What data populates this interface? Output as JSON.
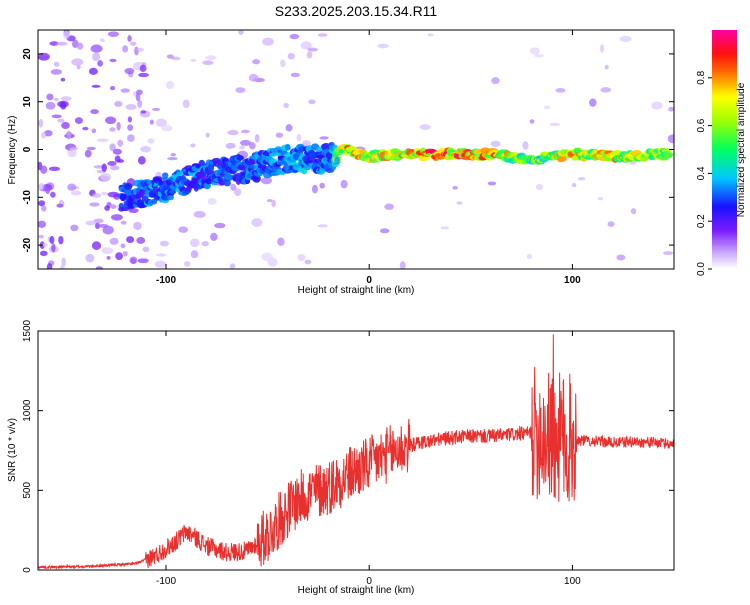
{
  "title": "S233.2025.203.15.34.R11",
  "colors": {
    "snr_line": "#e8302e",
    "axis": "#000000",
    "background": "#ffffff"
  },
  "chart_data": [
    {
      "type": "heatmap",
      "xlabel": "Height of straight line (km)",
      "ylabel": "Frequency (Hz)",
      "xlim": [
        -163,
        150
      ],
      "ylim": [
        -25,
        25
      ],
      "x_ticks": [
        -100,
        0,
        100
      ],
      "y_ticks": [
        -20,
        -10,
        0,
        10,
        20
      ],
      "grid": false,
      "colorbar": {
        "label": "Normalized spectral amplitude",
        "range": [
          0,
          1
        ],
        "ticks": [
          "0.0",
          "0.2",
          "0.4",
          "0.6",
          "0.8"
        ],
        "tick_values": [
          0.0,
          0.2,
          0.4,
          0.6,
          0.8
        ],
        "colormap": "rainbow (white-violet-blue-cyan-green-yellow-red-magenta)"
      },
      "ridge": {
        "description_points": [
          {
            "x": -120,
            "freq": -10,
            "amplitude": 0.35
          },
          {
            "x": -100,
            "freq": -8,
            "amplitude": 0.4
          },
          {
            "x": -80,
            "freq": -5,
            "amplitude": 0.35
          },
          {
            "x": -60,
            "freq": -4,
            "amplitude": 0.35
          },
          {
            "x": -40,
            "freq": -2,
            "amplitude": 0.4
          },
          {
            "x": -20,
            "freq": -2,
            "amplitude": 0.4
          },
          {
            "x": -12,
            "freq": 0,
            "amplitude": 0.85
          },
          {
            "x": 0,
            "freq": -1.5,
            "amplitude": 0.8
          },
          {
            "x": 20,
            "freq": -1,
            "amplitude": 0.85
          },
          {
            "x": 40,
            "freq": -1,
            "amplitude": 0.95
          },
          {
            "x": 60,
            "freq": -1,
            "amplitude": 0.9
          },
          {
            "x": 80,
            "freq": -2,
            "amplitude": 0.6
          },
          {
            "x": 100,
            "freq": -1,
            "amplitude": 0.85
          },
          {
            "x": 120,
            "freq": -1.5,
            "amplitude": 0.85
          },
          {
            "x": 145,
            "freq": -1,
            "amplitude": 0.7
          }
        ]
      }
    },
    {
      "type": "line",
      "xlabel": "Height of straight line (km)",
      "ylabel": "SNR (10 * v/v)",
      "xlim": [
        -163,
        150
      ],
      "ylim": [
        0,
        1500
      ],
      "x_ticks": [
        -100,
        0,
        100
      ],
      "y_ticks": [
        0,
        500,
        1000,
        1500
      ],
      "grid": false,
      "series": [
        {
          "points": [
            [
              -163,
              18
            ],
            [
              -150,
              20
            ],
            [
              -140,
              22
            ],
            [
              -130,
              28
            ],
            [
              -115,
              40
            ],
            [
              -105,
              90
            ],
            [
              -95,
              180
            ],
            [
              -90,
              240
            ],
            [
              -85,
              200
            ],
            [
              -80,
              150
            ],
            [
              -70,
              110
            ],
            [
              -60,
              120
            ],
            [
              -55,
              170
            ],
            [
              -50,
              220
            ],
            [
              -45,
              300
            ],
            [
              -40,
              380
            ],
            [
              -35,
              440
            ],
            [
              -30,
              480
            ],
            [
              -25,
              500
            ],
            [
              -20,
              520
            ],
            [
              -15,
              560
            ],
            [
              -10,
              600
            ],
            [
              -5,
              630
            ],
            [
              0,
              660
            ],
            [
              5,
              700
            ],
            [
              10,
              730
            ],
            [
              15,
              760
            ],
            [
              20,
              780
            ],
            [
              25,
              800
            ],
            [
              30,
              810
            ],
            [
              40,
              830
            ],
            [
              50,
              840
            ],
            [
              60,
              840
            ],
            [
              70,
              850
            ],
            [
              80,
              860
            ],
            [
              85,
              860
            ],
            [
              90,
              830
            ],
            [
              95,
              820
            ],
            [
              100,
              820
            ],
            [
              110,
              810
            ],
            [
              120,
              800
            ],
            [
              130,
              805
            ],
            [
              140,
              800
            ],
            [
              150,
              790
            ]
          ]
        }
      ]
    }
  ]
}
